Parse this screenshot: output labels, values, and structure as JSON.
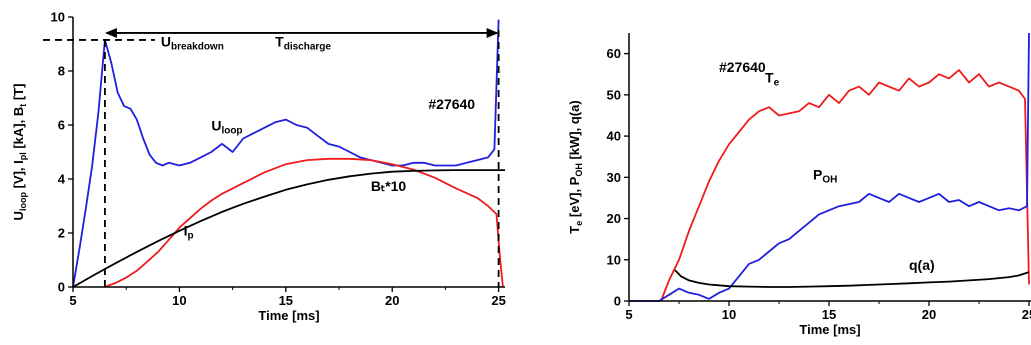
{
  "chart_data": [
    {
      "type": "line",
      "panel": "left",
      "xlabel": "Time [ms]",
      "ylabel": {
        "main": [
          "U",
          "loop",
          " [V], I",
          "pl",
          " [kA], B",
          "t",
          " [T]"
        ]
      },
      "xlim": [
        5,
        25.3
      ],
      "ylim": [
        0,
        10
      ],
      "xticks": [
        5,
        10,
        15,
        20,
        25
      ],
      "yticks": [
        0,
        2,
        4,
        6,
        8,
        10
      ],
      "colors": {
        "U_loop": "#1f1fdd",
        "I_p": "#ee1c1c",
        "B_t": "#000000"
      },
      "annotations": {
        "shot": "#27640",
        "u_breakdown": {
          "base": "U",
          "sub": "breakdown"
        },
        "t_discharge": {
          "base": "T",
          "sub": "discharge"
        },
        "u_loop": {
          "base": "U",
          "sub": "loop"
        },
        "i_p": {
          "base": "I",
          "sub": "p"
        },
        "b_t": "Bₜ*10"
      },
      "markers": {
        "breakdown_time": 6.5,
        "breakdown_voltage": 9.15,
        "end_time": 25
      },
      "series": [
        {
          "key": "U_loop",
          "x": [
            5.0,
            5.3,
            5.6,
            5.9,
            6.2,
            6.5,
            6.8,
            7.1,
            7.4,
            7.7,
            8.0,
            8.3,
            8.6,
            8.9,
            9.2,
            9.5,
            10.0,
            10.5,
            11.0,
            11.5,
            12.0,
            12.5,
            13.0,
            13.5,
            14.0,
            14.5,
            15.0,
            15.5,
            16.0,
            16.5,
            17.0,
            17.5,
            18.0,
            18.5,
            19.0,
            19.5,
            20.0,
            20.5,
            21.0,
            21.5,
            22.0,
            22.5,
            23.0,
            23.5,
            24.0,
            24.5,
            24.8,
            25.0
          ],
          "y": [
            0.0,
            1.4,
            2.9,
            4.5,
            6.5,
            9.15,
            8.3,
            7.2,
            6.7,
            6.6,
            6.2,
            5.5,
            4.9,
            4.6,
            4.5,
            4.6,
            4.5,
            4.6,
            4.8,
            5.0,
            5.3,
            5.0,
            5.5,
            5.7,
            5.9,
            6.1,
            6.2,
            6.0,
            5.9,
            5.6,
            5.3,
            5.2,
            5.0,
            4.8,
            4.7,
            4.6,
            4.5,
            4.5,
            4.6,
            4.6,
            4.5,
            4.5,
            4.5,
            4.6,
            4.7,
            4.8,
            5.1,
            9.9
          ]
        },
        {
          "key": "I_p",
          "x": [
            6.5,
            7.0,
            7.5,
            8.0,
            8.5,
            9.0,
            9.5,
            10.0,
            10.5,
            11.0,
            11.5,
            12.0,
            13.0,
            14.0,
            15.0,
            16.0,
            17.0,
            18.0,
            19.0,
            20.0,
            21.0,
            22.0,
            23.0,
            24.0,
            24.5,
            24.9,
            25.05,
            25.2
          ],
          "y": [
            0.0,
            0.15,
            0.35,
            0.6,
            0.95,
            1.3,
            1.75,
            2.2,
            2.55,
            2.9,
            3.2,
            3.45,
            3.85,
            4.25,
            4.55,
            4.7,
            4.75,
            4.75,
            4.7,
            4.55,
            4.35,
            4.05,
            3.65,
            3.3,
            3.0,
            2.7,
            1.2,
            0.0
          ]
        },
        {
          "key": "B_t",
          "x": [
            5.0,
            6.0,
            7.0,
            8.0,
            9.0,
            10.0,
            11.0,
            12.0,
            13.0,
            14.0,
            15.0,
            16.0,
            17.0,
            18.0,
            19.0,
            20.0,
            21.0,
            22.0,
            23.0,
            24.0,
            25.0,
            25.3
          ],
          "y": [
            0.0,
            0.45,
            0.88,
            1.3,
            1.7,
            2.08,
            2.44,
            2.78,
            3.08,
            3.35,
            3.6,
            3.8,
            3.97,
            4.1,
            4.2,
            4.27,
            4.3,
            4.32,
            4.33,
            4.33,
            4.33,
            4.33
          ]
        }
      ]
    },
    {
      "type": "line",
      "panel": "right",
      "xlabel": "Time [ms]",
      "ylabel": {
        "main": [
          "T",
          "e",
          " [eV], P",
          "OH",
          " [kW], q(a)"
        ]
      },
      "xlim": [
        5,
        25.1
      ],
      "ylim": [
        0,
        65
      ],
      "xticks": [
        5,
        10,
        15,
        20,
        25
      ],
      "yticks": [
        0,
        10,
        20,
        30,
        40,
        50,
        60
      ],
      "colors": {
        "T_e": "#ee1c1c",
        "P_OH": "#1f1fdd",
        "q_a": "#000000"
      },
      "annotations": {
        "shot": "#27640",
        "t_e": {
          "base": "T",
          "sub": "e"
        },
        "p_oh": {
          "base": "P",
          "sub": "OH"
        },
        "q_a": "q(a)"
      },
      "series": [
        {
          "key": "T_e",
          "x": [
            6.6,
            7.0,
            7.5,
            8.0,
            8.5,
            9.0,
            9.5,
            10.0,
            10.5,
            11.0,
            11.5,
            12.0,
            12.5,
            13.0,
            13.5,
            14.0,
            14.5,
            15.0,
            15.5,
            16.0,
            16.5,
            17.0,
            17.5,
            18.0,
            18.5,
            19.0,
            19.5,
            20.0,
            20.5,
            21.0,
            21.5,
            22.0,
            22.5,
            23.0,
            23.5,
            24.0,
            24.5,
            24.8,
            25.0
          ],
          "y": [
            0.0,
            5.0,
            10.0,
            17.0,
            23.0,
            29.0,
            34.0,
            38.0,
            41.0,
            44.0,
            46.0,
            47.0,
            45.0,
            45.5,
            46.0,
            48.0,
            47.0,
            50.0,
            48.0,
            51.0,
            52.0,
            50.0,
            53.0,
            52.0,
            51.0,
            54.0,
            52.0,
            53.0,
            55.0,
            54.0,
            56.0,
            53.0,
            55.0,
            52.0,
            53.0,
            52.0,
            51.0,
            49.0,
            4.0
          ]
        },
        {
          "key": "P_OH",
          "x": [
            5.0,
            6.5,
            7.0,
            7.5,
            8.0,
            8.5,
            9.0,
            9.5,
            10.0,
            10.5,
            11.0,
            11.5,
            12.0,
            12.5,
            13.0,
            13.5,
            14.0,
            14.5,
            15.0,
            15.5,
            16.0,
            16.5,
            17.0,
            17.5,
            18.0,
            18.5,
            19.0,
            19.5,
            20.0,
            20.5,
            21.0,
            21.5,
            22.0,
            22.5,
            23.0,
            23.5,
            24.0,
            24.5,
            24.9,
            25.0
          ],
          "y": [
            0.0,
            0.0,
            1.5,
            3.0,
            2.0,
            1.5,
            0.5,
            2.0,
            3.0,
            6.0,
            9.0,
            10.0,
            12.0,
            14.0,
            15.0,
            17.0,
            19.0,
            21.0,
            22.0,
            23.0,
            23.5,
            24.0,
            26.0,
            25.0,
            24.0,
            26.0,
            25.0,
            24.0,
            25.0,
            26.0,
            24.0,
            24.5,
            23.0,
            24.0,
            23.0,
            22.0,
            22.5,
            22.0,
            23.0,
            65.0
          ]
        },
        {
          "key": "q_a",
          "x": [
            7.3,
            7.6,
            8.0,
            8.5,
            9.0,
            9.5,
            10.0,
            11.0,
            12.0,
            13.0,
            14.0,
            15.0,
            16.0,
            17.0,
            18.0,
            19.0,
            20.0,
            21.0,
            22.0,
            23.0,
            24.0,
            24.5,
            25.0
          ],
          "y": [
            7.5,
            6.0,
            5.0,
            4.4,
            4.0,
            3.8,
            3.6,
            3.5,
            3.4,
            3.4,
            3.5,
            3.6,
            3.7,
            3.9,
            4.1,
            4.3,
            4.5,
            4.7,
            5.0,
            5.3,
            5.8,
            6.2,
            7.0
          ]
        }
      ]
    }
  ]
}
